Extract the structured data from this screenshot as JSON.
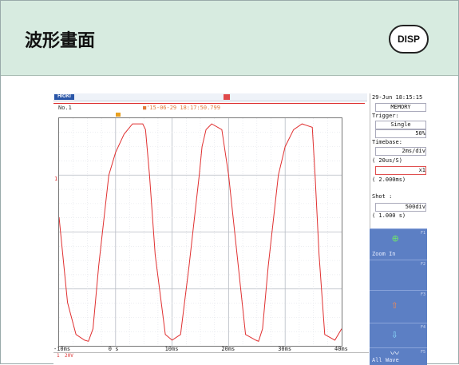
{
  "header": {
    "title": "波形畫面",
    "disp_label": "DISP"
  },
  "device": {
    "brand": "HIOKI",
    "datetime": "29-Jun 18:15:15",
    "sheet": "No.1",
    "record_stamp": "■'15-06-29 18:17:50.799",
    "channel_marker": "1",
    "channel_bar": {
      "ch": "1",
      "range": "20V"
    },
    "x_axis": [
      "-10ms",
      "0 s",
      "10ms",
      "20ms",
      "30ms",
      "40ms"
    ],
    "panel": {
      "mode": "MEMORY",
      "trigger_label": "Trigger:",
      "trigger_mode": "Single",
      "trigger_level": "50%",
      "timebase_label": "Timebase:",
      "timebase": "2ms/div",
      "sampling": "(  20us/S)",
      "magnification": "x1",
      "time_span": "( 2.000ms)",
      "shot_label": "Shot    :",
      "shot_div": "500div",
      "shot_time": "( 1.000 s)"
    },
    "fkeys": [
      {
        "label": "Zoom In",
        "icon": "zoom-in-icon"
      },
      {
        "label": "",
        "icon": "blank"
      },
      {
        "label": "",
        "icon": "arrow-up-icon"
      },
      {
        "label": "",
        "icon": "arrow-down-icon"
      },
      {
        "label": "All Wave",
        "icon": "all-wave-icon"
      }
    ]
  },
  "chart_data": {
    "type": "line",
    "xlabel": "",
    "ylabel": "",
    "xlim": [
      -10,
      40
    ],
    "ylim": [
      -1,
      1
    ],
    "grid": true,
    "series": [
      {
        "color": "#e03030",
        "x": [
          -10,
          -8.5,
          -7,
          -5.5,
          -4.8,
          -4,
          -3,
          -1.2,
          0,
          1.5,
          3,
          4.8,
          5.3,
          6,
          7,
          8.8,
          10,
          11.5,
          13,
          14.8,
          15.3,
          16,
          17,
          18.8,
          20,
          21.5,
          23,
          24.8,
          25.3,
          26,
          27,
          28.8,
          30,
          31.5,
          33,
          34.8,
          35.3,
          36,
          37,
          38.8,
          40
        ],
        "y": [
          0.13,
          -0.62,
          -0.9,
          -0.95,
          -0.96,
          -0.85,
          -0.3,
          0.5,
          0.7,
          0.86,
          0.95,
          0.95,
          0.9,
          0.5,
          -0.2,
          -0.9,
          -0.95,
          -0.9,
          -0.3,
          0.5,
          0.75,
          0.9,
          0.95,
          0.9,
          0.5,
          -0.2,
          -0.9,
          -0.95,
          -0.96,
          -0.85,
          -0.3,
          0.5,
          0.75,
          0.9,
          0.95,
          0.92,
          0.5,
          -0.2,
          -0.9,
          -0.95,
          -0.85
        ]
      }
    ]
  }
}
